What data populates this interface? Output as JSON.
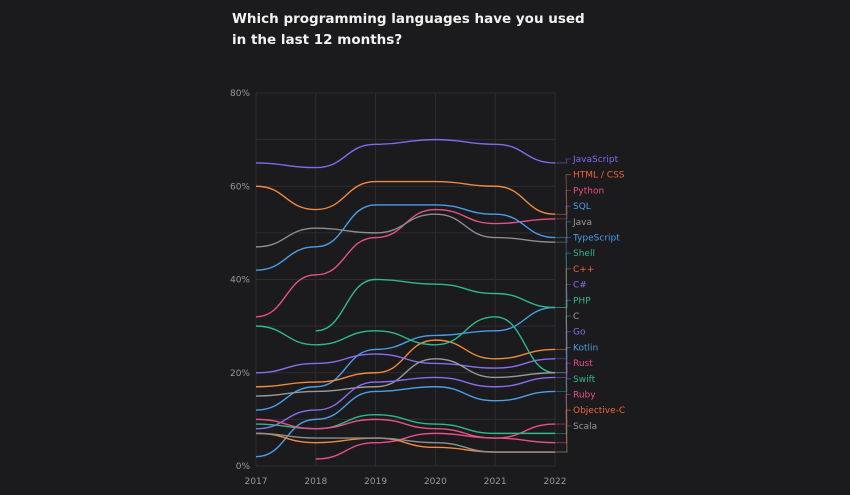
{
  "chart_data": {
    "type": "line",
    "title": "Which programming languages have you used in the last 12 months?",
    "xlabel": "",
    "ylabel": "",
    "x": [
      2017,
      2018,
      2019,
      2020,
      2021,
      2022
    ],
    "x_tick_labels": [
      "2017",
      "2018",
      "2019",
      "2020",
      "2021",
      "2022"
    ],
    "y_tick_labels": [
      "0%",
      "20%",
      "40%",
      "60%",
      "80%"
    ],
    "ylim": [
      0,
      80
    ],
    "grid": true,
    "legend": "right-end-labels",
    "series": [
      {
        "name": "JavaScript",
        "color": "#7c6cf0",
        "values": [
          65,
          64,
          69,
          70,
          69,
          65
        ]
      },
      {
        "name": "HTML / CSS",
        "color": "#f08a3c",
        "values": [
          60,
          55,
          61,
          61,
          60,
          54
        ]
      },
      {
        "name": "Python",
        "color": "#e8508c",
        "values": [
          32,
          41,
          49,
          55,
          52,
          53
        ]
      },
      {
        "name": "SQL",
        "color": "#4a9ee8",
        "values": [
          42,
          47,
          56,
          56,
          54,
          49
        ]
      },
      {
        "name": "Java",
        "color": "#8e8e8e",
        "values": [
          47,
          51,
          50,
          54,
          49,
          48
        ]
      },
      {
        "name": "TypeScript",
        "color": "#4a9ee8",
        "values": [
          12,
          17,
          25,
          28,
          29,
          34
        ]
      },
      {
        "name": "Shell",
        "color": "#2fb98a",
        "values": [
          null,
          29,
          40,
          39,
          37,
          34
        ]
      },
      {
        "name": "C++",
        "color": "#f08a3c",
        "values": [
          17,
          18,
          20,
          27,
          23,
          25
        ]
      },
      {
        "name": "C#",
        "color": "#8a6cf0",
        "values": [
          20,
          22,
          24,
          22,
          21,
          23
        ]
      },
      {
        "name": "PHP",
        "color": "#2fb98a",
        "values": [
          30,
          26,
          29,
          26,
          32,
          20
        ]
      },
      {
        "name": "C",
        "color": "#9a9a9a",
        "values": [
          15,
          16,
          17,
          23,
          19,
          20
        ]
      },
      {
        "name": "Go",
        "color": "#8a6cf0",
        "values": [
          8,
          12,
          18,
          19,
          17,
          19
        ]
      },
      {
        "name": "Kotlin",
        "color": "#4a9ee8",
        "values": [
          2,
          10,
          16,
          17,
          14,
          16
        ]
      },
      {
        "name": "Rust",
        "color": "#e8508c",
        "values": [
          null,
          1.5,
          5,
          7,
          6,
          9
        ]
      },
      {
        "name": "Swift",
        "color": "#2fb98a",
        "values": [
          9,
          8,
          11,
          9,
          7,
          7
        ]
      },
      {
        "name": "Ruby",
        "color": "#e8508c",
        "values": [
          10,
          8,
          10,
          8,
          6,
          5
        ]
      },
      {
        "name": "Objective-C",
        "color": "#f08a3c",
        "values": [
          7,
          5,
          6,
          4,
          3,
          3
        ]
      },
      {
        "name": "Scala",
        "color": "#8e8e8e",
        "values": [
          7,
          6,
          6,
          5,
          3,
          3
        ]
      }
    ],
    "label_colors": {
      "JavaScript": "#7c6cf0",
      "HTML / CSS": "#f0643c",
      "Python": "#e8508c",
      "SQL": "#4a9ee8",
      "Java": "#9a9a9a",
      "TypeScript": "#4a9ee8",
      "Shell": "#2fb98a",
      "C++": "#f0643c",
      "C#": "#8a6cf0",
      "PHP": "#2fb98a",
      "C": "#9a9a9a",
      "Go": "#8a6cf0",
      "Kotlin": "#4a9ee8",
      "Rust": "#e8508c",
      "Swift": "#2fb98a",
      "Ruby": "#e8508c",
      "Objective-C": "#f0643c",
      "Scala": "#9a9a9a"
    }
  }
}
